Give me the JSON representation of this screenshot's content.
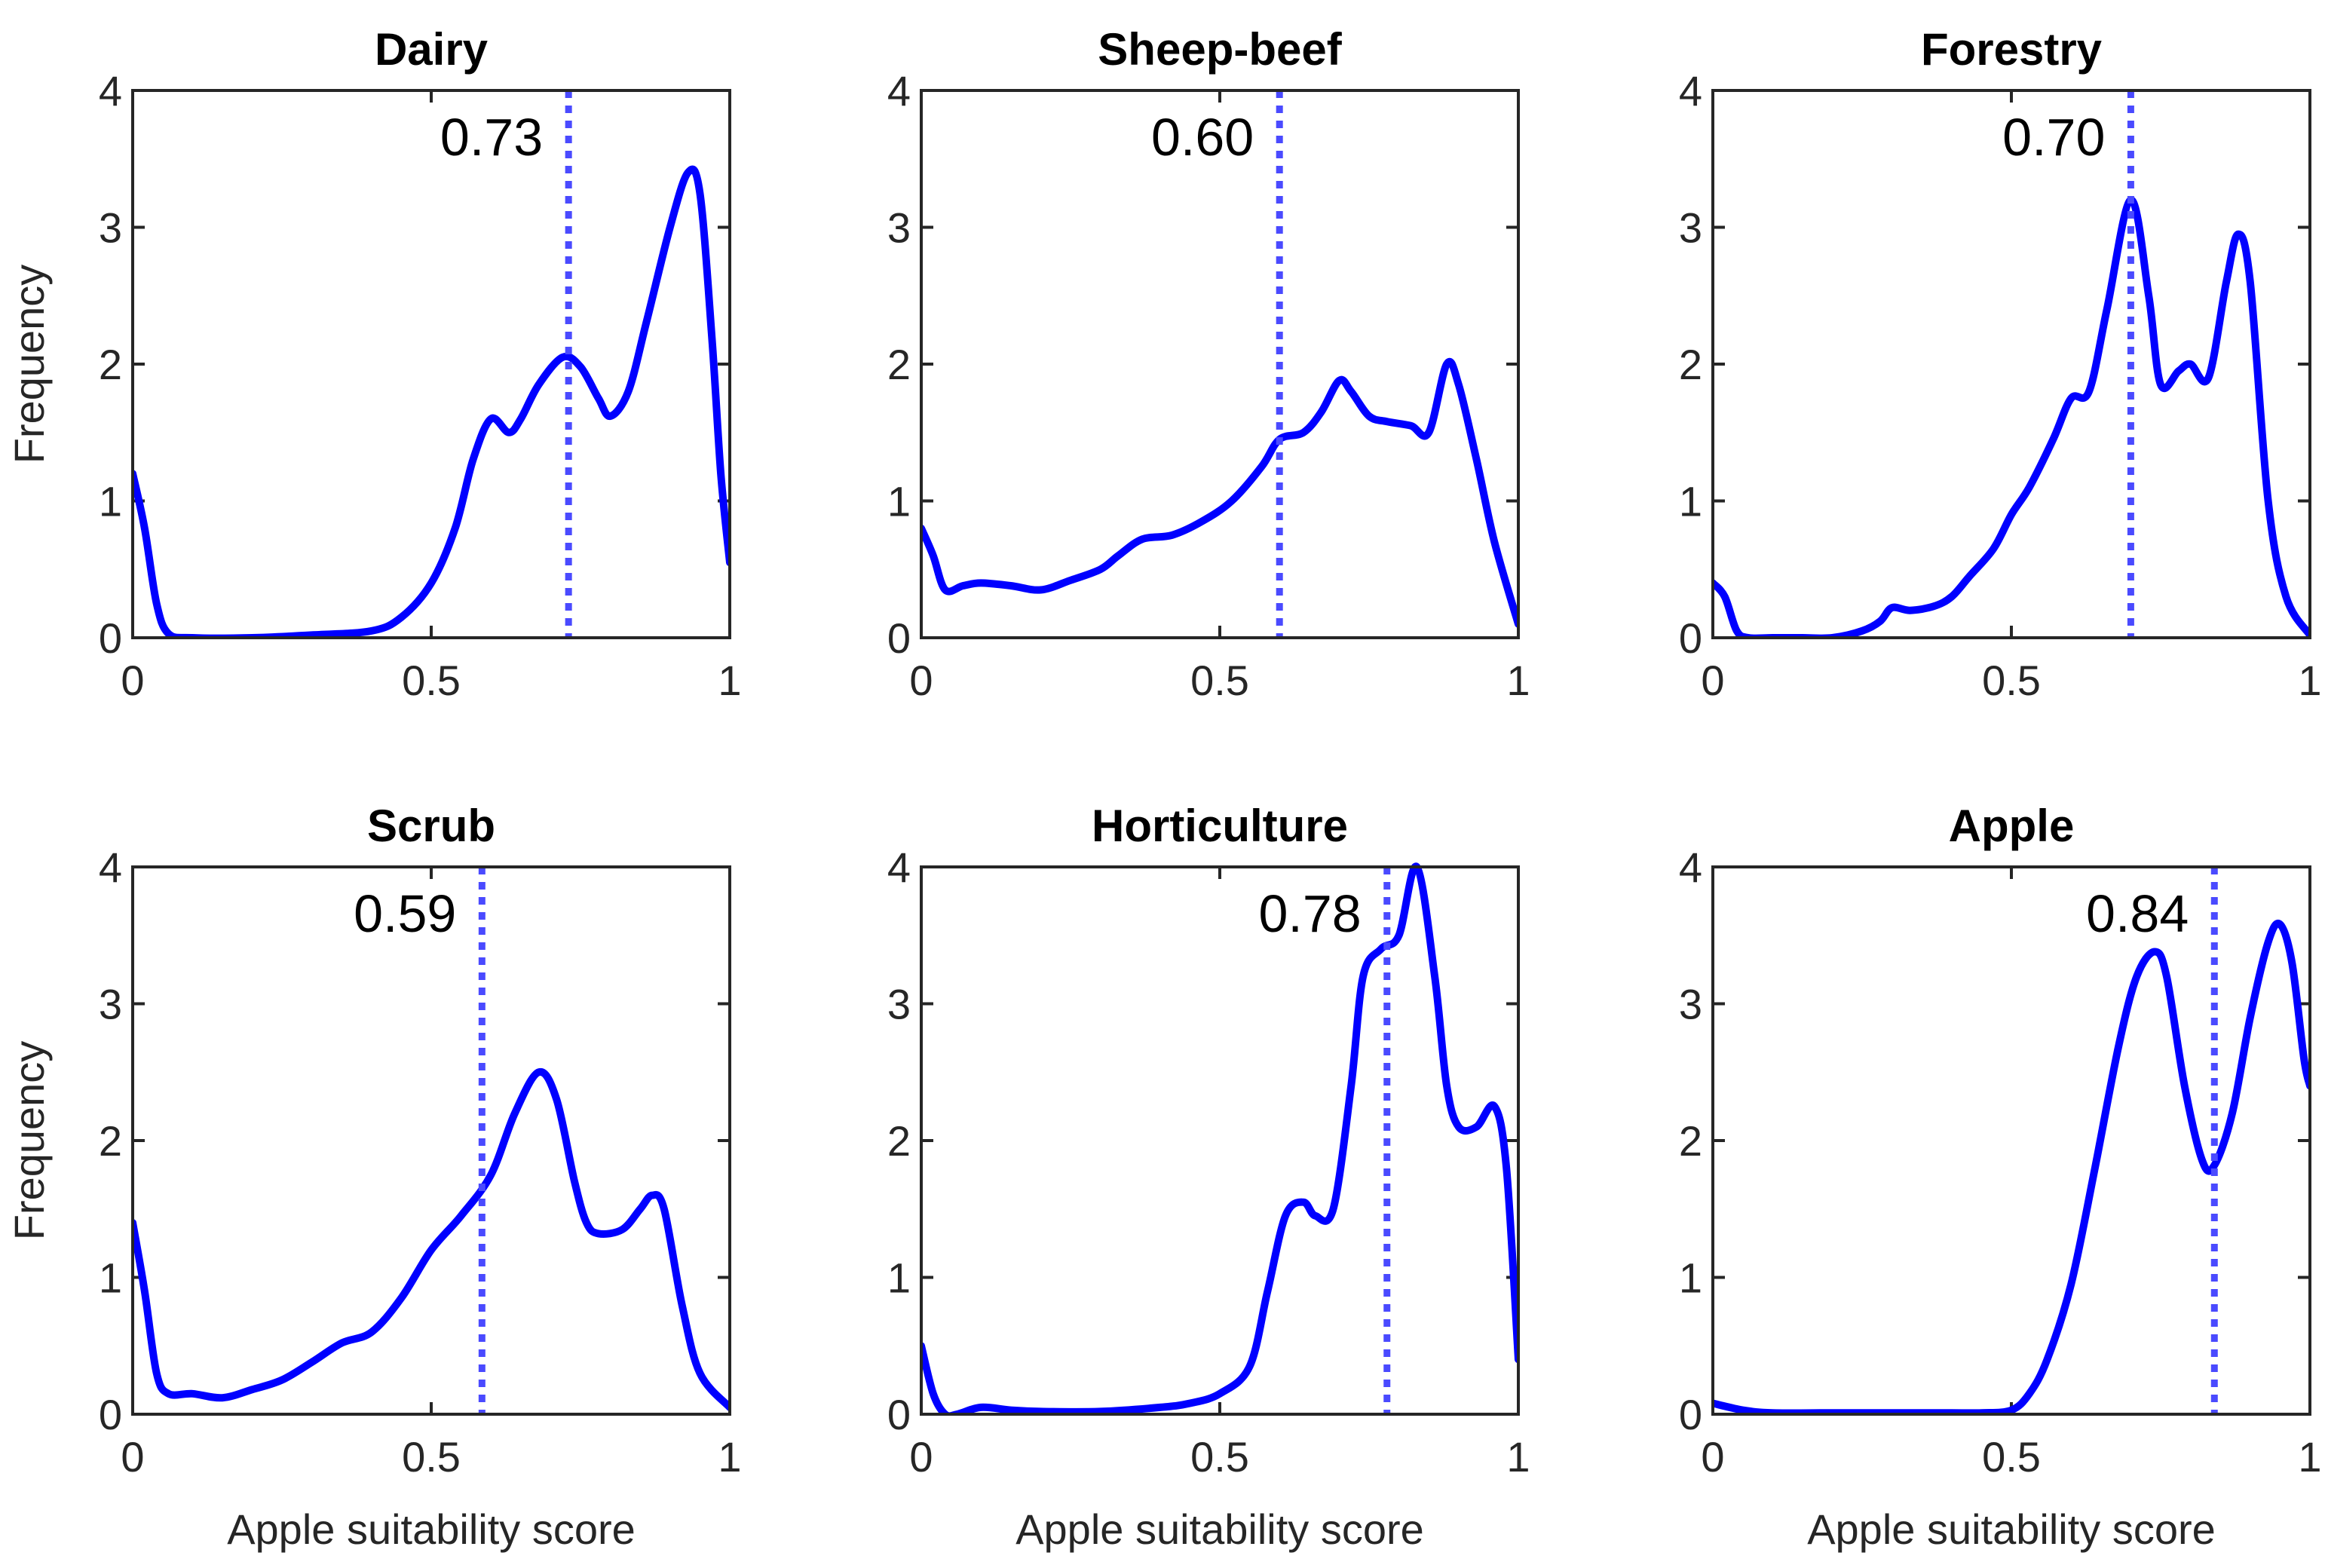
{
  "chart_data": [
    {
      "type": "line",
      "title": "Dairy",
      "xlabel": "",
      "ylabel": "Frequency",
      "xlim": [
        0,
        1
      ],
      "ylim": [
        0,
        4
      ],
      "xticks": [
        "0",
        "0.5",
        "1"
      ],
      "yticks": [
        "0",
        "1",
        "2",
        "3",
        "4"
      ],
      "mean": 0.73,
      "mean_label": "0.73",
      "series": [
        {
          "x": [
            0,
            0.02,
            0.04,
            0.06,
            0.1,
            0.2,
            0.3,
            0.4,
            0.45,
            0.5,
            0.54,
            0.57,
            0.6,
            0.63,
            0.65,
            0.68,
            0.72,
            0.75,
            0.78,
            0.8,
            0.83,
            0.86,
            0.9,
            0.93,
            0.95,
            0.97,
            0.985,
            1
          ],
          "y": [
            1.2,
            0.8,
            0.25,
            0.03,
            0.0,
            0.0,
            0.02,
            0.05,
            0.15,
            0.4,
            0.8,
            1.3,
            1.6,
            1.5,
            1.6,
            1.85,
            2.05,
            1.98,
            1.75,
            1.62,
            1.8,
            2.3,
            3.0,
            3.4,
            3.25,
            2.2,
            1.2,
            0.55
          ]
        }
      ]
    },
    {
      "type": "line",
      "title": "Sheep-beef",
      "xlabel": "",
      "ylabel": "",
      "xlim": [
        0,
        1
      ],
      "ylim": [
        0,
        4
      ],
      "xticks": [
        "0",
        "0.5",
        "1"
      ],
      "yticks": [
        "0",
        "1",
        "2",
        "3",
        "4"
      ],
      "mean": 0.6,
      "mean_label": "0.60",
      "series": [
        {
          "x": [
            0,
            0.02,
            0.04,
            0.07,
            0.1,
            0.15,
            0.2,
            0.25,
            0.3,
            0.33,
            0.37,
            0.42,
            0.47,
            0.52,
            0.57,
            0.6,
            0.64,
            0.67,
            0.7,
            0.72,
            0.75,
            0.78,
            0.82,
            0.85,
            0.88,
            0.9,
            0.93,
            0.96,
            1
          ],
          "y": [
            0.8,
            0.6,
            0.35,
            0.38,
            0.4,
            0.38,
            0.35,
            0.42,
            0.5,
            0.6,
            0.72,
            0.75,
            0.85,
            1.0,
            1.25,
            1.45,
            1.5,
            1.65,
            1.88,
            1.8,
            1.62,
            1.58,
            1.55,
            1.5,
            2.0,
            1.85,
            1.3,
            0.7,
            0.1
          ]
        }
      ]
    },
    {
      "type": "line",
      "title": "Forestry",
      "xlabel": "",
      "ylabel": "",
      "xlim": [
        0,
        1
      ],
      "ylim": [
        0,
        4
      ],
      "xticks": [
        "0",
        "0.5",
        "1"
      ],
      "yticks": [
        "0",
        "1",
        "2",
        "3",
        "4"
      ],
      "mean": 0.7,
      "mean_label": "0.70",
      "series": [
        {
          "x": [
            0,
            0.02,
            0.04,
            0.06,
            0.1,
            0.15,
            0.2,
            0.25,
            0.28,
            0.3,
            0.33,
            0.37,
            0.4,
            0.43,
            0.47,
            0.5,
            0.53,
            0.57,
            0.6,
            0.63,
            0.66,
            0.7,
            0.73,
            0.75,
            0.78,
            0.8,
            0.83,
            0.86,
            0.88,
            0.9,
            0.93,
            0.96,
            1
          ],
          "y": [
            0.4,
            0.3,
            0.05,
            0.0,
            0.0,
            0.0,
            0.0,
            0.05,
            0.12,
            0.22,
            0.2,
            0.23,
            0.3,
            0.45,
            0.65,
            0.9,
            1.1,
            1.45,
            1.75,
            1.8,
            2.4,
            3.2,
            2.5,
            1.85,
            1.95,
            2.0,
            1.9,
            2.6,
            2.95,
            2.6,
            1.0,
            0.3,
            0.02
          ]
        }
      ]
    },
    {
      "type": "line",
      "title": "Scrub",
      "xlabel": "Apple suitability score",
      "ylabel": "Frequency",
      "xlim": [
        0,
        1
      ],
      "ylim": [
        0,
        4
      ],
      "xticks": [
        "0",
        "0.5",
        "1"
      ],
      "yticks": [
        "0",
        "1",
        "2",
        "3",
        "4"
      ],
      "mean": 0.585,
      "mean_label": "0.59",
      "series": [
        {
          "x": [
            0,
            0.02,
            0.04,
            0.06,
            0.1,
            0.15,
            0.2,
            0.25,
            0.3,
            0.35,
            0.4,
            0.45,
            0.5,
            0.55,
            0.6,
            0.64,
            0.68,
            0.71,
            0.74,
            0.76,
            0.78,
            0.82,
            0.85,
            0.87,
            0.89,
            0.92,
            0.95,
            1
          ],
          "y": [
            1.4,
            0.9,
            0.3,
            0.15,
            0.15,
            0.12,
            0.18,
            0.25,
            0.38,
            0.52,
            0.6,
            0.85,
            1.2,
            1.45,
            1.75,
            2.2,
            2.5,
            2.3,
            1.7,
            1.4,
            1.32,
            1.35,
            1.5,
            1.6,
            1.5,
            0.8,
            0.3,
            0.05
          ]
        }
      ]
    },
    {
      "type": "line",
      "title": "Horticulture",
      "xlabel": "Apple suitability score",
      "ylabel": "",
      "xlim": [
        0,
        1
      ],
      "ylim": [
        0,
        4
      ],
      "xticks": [
        "0",
        "0.5",
        "1"
      ],
      "yticks": [
        "0",
        "1",
        "2",
        "3",
        "4"
      ],
      "mean": 0.78,
      "mean_label": "0.78",
      "series": [
        {
          "x": [
            0,
            0.02,
            0.04,
            0.06,
            0.1,
            0.15,
            0.2,
            0.3,
            0.4,
            0.45,
            0.5,
            0.55,
            0.58,
            0.61,
            0.64,
            0.66,
            0.69,
            0.72,
            0.74,
            0.77,
            0.8,
            0.83,
            0.86,
            0.88,
            0.9,
            0.93,
            0.96,
            0.98,
            1
          ],
          "y": [
            0.5,
            0.15,
            0.0,
            0.0,
            0.05,
            0.03,
            0.02,
            0.02,
            0.05,
            0.08,
            0.15,
            0.35,
            0.9,
            1.45,
            1.55,
            1.45,
            1.5,
            2.4,
            3.2,
            3.4,
            3.5,
            4.0,
            3.2,
            2.4,
            2.1,
            2.1,
            2.25,
            1.8,
            0.4
          ]
        }
      ]
    },
    {
      "type": "line",
      "title": "Apple",
      "xlabel": "Apple suitability score",
      "ylabel": "",
      "xlim": [
        0,
        1
      ],
      "ylim": [
        0,
        4
      ],
      "xticks": [
        "0",
        "0.5",
        "1"
      ],
      "yticks": [
        "0",
        "1",
        "2",
        "3",
        "4"
      ],
      "mean": 0.84,
      "mean_label": "0.84",
      "series": [
        {
          "x": [
            0,
            0.05,
            0.1,
            0.2,
            0.3,
            0.4,
            0.45,
            0.5,
            0.53,
            0.56,
            0.6,
            0.64,
            0.68,
            0.71,
            0.74,
            0.76,
            0.79,
            0.82,
            0.84,
            0.87,
            0.9,
            0.93,
            0.95,
            0.97,
            0.99,
            1
          ],
          "y": [
            0.08,
            0.03,
            0.01,
            0.01,
            0.01,
            0.01,
            0.01,
            0.03,
            0.15,
            0.4,
            0.95,
            1.8,
            2.7,
            3.2,
            3.38,
            3.2,
            2.4,
            1.85,
            1.82,
            2.2,
            2.9,
            3.45,
            3.58,
            3.3,
            2.6,
            2.4
          ]
        }
      ]
    }
  ]
}
